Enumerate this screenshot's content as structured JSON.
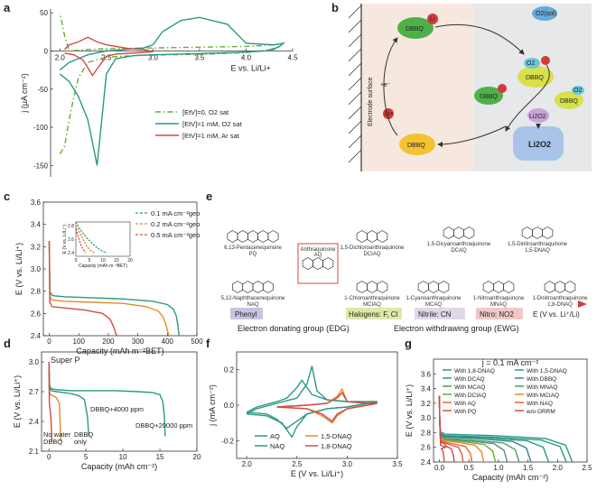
{
  "panel_labels": {
    "a": "a",
    "b": "b",
    "c": "c",
    "d": "d",
    "e": "e",
    "f": "f",
    "g": "g"
  },
  "chart_data": [
    {
      "id": "a",
      "type": "line",
      "xlabel": "E vs. Li/Li+",
      "ylabel": "j (μA cm⁻²)",
      "xlim": [
        1.9,
        4.5
      ],
      "ylim": [
        -165,
        55
      ],
      "xticks": [
        2.0,
        2.5,
        3.0,
        3.5,
        4.0,
        4.5
      ],
      "yticks": [
        50,
        0,
        -50,
        -100,
        -150
      ],
      "xtick_labels": [
        "2.0",
        "2.5",
        "3.0",
        "3.5",
        "4.0",
        "4.5"
      ],
      "ytick_labels": [
        "50",
        "0",
        "-50",
        "-100",
        "-150"
      ],
      "series": [
        {
          "name": "[EtV]=0, O2 sat",
          "color": "#6aaa3a",
          "dash": "6,3,1.5,3",
          "x": [
            2.0,
            2.05,
            2.1,
            2.15,
            2.2,
            2.3,
            2.5,
            2.8,
            3.2,
            3.6,
            4.0,
            4.3,
            4.4,
            4.3,
            4.0,
            3.5,
            3.0,
            2.5,
            2.3,
            2.2,
            2.1,
            2.05,
            2.0
          ],
          "y": [
            -135,
            -125,
            -90,
            -60,
            -35,
            -15,
            -8,
            -6,
            -5,
            -4,
            -2,
            2,
            10,
            8,
            6,
            5,
            4,
            3,
            2,
            1,
            0,
            20,
            50
          ]
        },
        {
          "name": "[EtV]=1 mM, O2 sat",
          "color": "#2a9a82",
          "dash": "",
          "x": [
            2.0,
            2.1,
            2.2,
            2.3,
            2.35,
            2.4,
            2.45,
            2.5,
            2.6,
            2.8,
            3.0,
            3.3,
            3.6,
            3.9,
            4.2,
            4.35,
            4.4,
            4.3,
            4.0,
            3.8,
            3.5,
            3.3,
            3.1,
            3.0,
            2.9,
            2.7,
            2.5,
            2.3,
            2.1,
            2.0
          ],
          "y": [
            -30,
            -40,
            -60,
            -90,
            -120,
            -150,
            -90,
            -30,
            -10,
            -6,
            -5,
            -4,
            -3,
            -2,
            0,
            5,
            10,
            8,
            10,
            35,
            44,
            40,
            25,
            8,
            4,
            2,
            0,
            -5,
            -15,
            -25
          ]
        },
        {
          "name": "[EtV]=1 mM, Ar sat",
          "color": "#d24a4a",
          "dash": "",
          "x": [
            2.05,
            2.15,
            2.25,
            2.35,
            2.42,
            2.5,
            2.6,
            2.75,
            2.9,
            3.0,
            2.9,
            2.75,
            2.6,
            2.5,
            2.45,
            2.4,
            2.3,
            2.2,
            2.1,
            2.05
          ],
          "y": [
            -3,
            -5,
            -12,
            -32,
            -20,
            -7,
            -4,
            -3,
            -2,
            -1,
            2,
            3,
            6,
            8,
            10,
            12,
            18,
            12,
            8,
            2
          ]
        }
      ],
      "legend": "bottom-right"
    },
    {
      "id": "c",
      "type": "line",
      "xlabel": "Capacity (mAh m⁻²BET)",
      "ylabel": "E (V vs. Li/Li⁺)",
      "xlim": [
        -20,
        500
      ],
      "ylim": [
        2.4,
        3.6
      ],
      "xticks": [
        0,
        100,
        200,
        300,
        400,
        500
      ],
      "yticks": [
        2.4,
        2.6,
        2.8,
        3.0,
        3.2,
        3.4,
        3.6
      ],
      "xtick_labels": [
        "0",
        "100",
        "200",
        "300",
        "400",
        "500"
      ],
      "ytick_labels": [
        "2.4",
        "2.6",
        "2.8",
        "3.0",
        "3.2",
        "3.4",
        "3.6"
      ],
      "series": [
        {
          "name": "0.1 mA cm⁻²geo",
          "color": "#2a9a82",
          "x": [
            0,
            2,
            10,
            50,
            150,
            250,
            350,
            400,
            420,
            430,
            435,
            440
          ],
          "y": [
            3.25,
            2.8,
            2.76,
            2.75,
            2.74,
            2.73,
            2.71,
            2.68,
            2.64,
            2.58,
            2.5,
            2.4
          ]
        },
        {
          "name": "0.2 mA cm⁻²geo",
          "color": "#e58a2a",
          "x": [
            0,
            2,
            10,
            50,
            150,
            250,
            330,
            370,
            385,
            395,
            400,
            405
          ],
          "y": [
            3.25,
            2.75,
            2.72,
            2.71,
            2.7,
            2.69,
            2.66,
            2.62,
            2.57,
            2.5,
            2.45,
            2.4
          ]
        },
        {
          "name": "0.5 mA cm⁻²geo",
          "color": "#d24a4a",
          "x": [
            0,
            2,
            10,
            50,
            120,
            180,
            205,
            215,
            222,
            228
          ],
          "y": [
            3.25,
            2.7,
            2.66,
            2.65,
            2.63,
            2.6,
            2.55,
            2.5,
            2.45,
            2.4
          ]
        }
      ],
      "inset": {
        "xlabel": "Capacity (mAh m⁻²BET)",
        "ylabel": "E (V vs. Li/Li⁺)",
        "xticks": [
          0,
          5,
          10,
          15,
          20
        ],
        "xtick_labels": [
          "0",
          "5",
          "10",
          "15",
          "20"
        ],
        "yticks": [
          2.4,
          2.6,
          2.8
        ],
        "ytick_labels": [
          "2.4",
          "2.6",
          "2.8"
        ],
        "xlim": [
          0,
          20
        ],
        "ylim": [
          2.35,
          2.85
        ],
        "series": [
          {
            "color": "#2a9a82",
            "x": [
              0,
              1,
              2,
              4,
              6,
              8,
              10,
              11.5
            ],
            "y": [
              2.85,
              2.78,
              2.72,
              2.62,
              2.54,
              2.47,
              2.42,
              2.4
            ]
          },
          {
            "color": "#e58a2a",
            "x": [
              0,
              1,
              2,
              3,
              4,
              5,
              6,
              7
            ],
            "y": [
              2.8,
              2.72,
              2.65,
              2.57,
              2.5,
              2.45,
              2.42,
              2.4
            ]
          },
          {
            "color": "#d24a4a",
            "x": [
              0,
              0.5,
              1,
              1.5,
              2,
              2.5,
              3,
              3.5
            ],
            "y": [
              2.75,
              2.68,
              2.62,
              2.56,
              2.5,
              2.46,
              2.43,
              2.4
            ]
          }
        ]
      },
      "legend": "top-right"
    },
    {
      "id": "d",
      "type": "line",
      "xlabel": "Capacity (mAh cm⁻²)",
      "ylabel": "E (V vs. Li/Li⁺)",
      "xlim": [
        -1,
        20
      ],
      "ylim": [
        2.1,
        3.1
      ],
      "xticks": [
        0,
        5,
        10,
        15,
        20
      ],
      "yticks": [
        2.1,
        2.4,
        2.7,
        3.0
      ],
      "xtick_labels": [
        "0",
        "5",
        "10",
        "15",
        "20"
      ],
      "ytick_labels": [
        "2.1",
        "2.4",
        "2.7",
        "3.0"
      ],
      "title_text": "Super P",
      "series": [
        {
          "name": "DBBQ+20000 ppm",
          "color": "#2a9a82",
          "x": [
            0,
            0.1,
            0.3,
            1,
            3,
            6,
            9,
            12,
            14,
            15,
            15.4,
            15.6,
            15.7
          ],
          "y": [
            3.0,
            2.76,
            2.73,
            2.72,
            2.71,
            2.71,
            2.71,
            2.7,
            2.69,
            2.67,
            2.6,
            2.45,
            2.25
          ]
        },
        {
          "name": "DBBQ+4000 ppm",
          "color": "#2a9a82",
          "x": [
            0,
            0.1,
            0.3,
            1,
            2,
            3,
            4,
            4.8,
            5.2,
            5.4
          ],
          "y": [
            3.0,
            2.74,
            2.71,
            2.7,
            2.69,
            2.68,
            2.66,
            2.62,
            2.45,
            2.25
          ]
        },
        {
          "name": "DBBQ only",
          "color": "#e58a2a",
          "x": [
            0,
            0.05,
            0.2,
            0.5,
            1.0,
            1.4,
            1.6
          ],
          "y": [
            3.0,
            2.7,
            2.67,
            2.66,
            2.64,
            2.58,
            2.2
          ]
        },
        {
          "name": "No water DBBQ",
          "color": "#d24a4a",
          "x": [
            0,
            0.05,
            0.1,
            0.2,
            0.3,
            0.4
          ],
          "y": [
            3.0,
            2.6,
            2.55,
            2.5,
            2.4,
            2.2
          ]
        }
      ],
      "annotations": [
        "DBBQ+4000 ppm",
        "DBBQ+20000 ppm",
        "No water",
        "DBBQ",
        "DBBQ",
        "only"
      ]
    },
    {
      "id": "f",
      "type": "line",
      "xlabel": "E (V vs. Li/Li⁺)",
      "ylabel": "j (mA cm⁻²)",
      "xlim": [
        1.9,
        3.5
      ],
      "ylim": [
        -0.3,
        0.3
      ],
      "xticks": [
        2.0,
        2.5,
        3.0,
        3.5
      ],
      "yticks": [
        -0.2,
        0.0,
        0.2
      ],
      "xtick_labels": [
        "2.0",
        "2.5",
        "3.0",
        "3.5"
      ],
      "ytick_labels": [
        "-0.2",
        "0.0",
        "0.2"
      ],
      "series": [
        {
          "name": "AQ",
          "color": "#2a9a82",
          "x": [
            2.0,
            2.2,
            2.35,
            2.45,
            2.5,
            2.6,
            2.8,
            3.0,
            3.3,
            3.0,
            2.8,
            2.7,
            2.65,
            2.6,
            2.5,
            2.3,
            2.1,
            2.0
          ],
          "y": [
            -0.05,
            -0.06,
            -0.1,
            -0.18,
            -0.12,
            -0.05,
            -0.02,
            -0.01,
            0.02,
            0.02,
            0.03,
            0.08,
            0.22,
            0.12,
            0.04,
            0.01,
            -0.02,
            -0.05
          ]
        },
        {
          "name": "NAQ",
          "color": "#2a9a82",
          "x": [
            2.0,
            2.2,
            2.3,
            2.4,
            2.5,
            2.6,
            2.8,
            3.0,
            3.3,
            3.0,
            2.8,
            2.65,
            2.55,
            2.5,
            2.4,
            2.3,
            2.1,
            2.0
          ],
          "y": [
            -0.04,
            -0.05,
            -0.08,
            -0.13,
            -0.09,
            -0.05,
            -0.02,
            -0.01,
            0.02,
            0.02,
            0.03,
            0.06,
            0.14,
            0.1,
            0.04,
            0.02,
            -0.01,
            -0.04
          ]
        },
        {
          "name": "1,5-DNAQ",
          "color": "#e58a2a",
          "x": [
            2.3,
            2.6,
            2.75,
            2.85,
            2.9,
            3.0,
            3.2,
            3.3,
            3.2,
            3.0,
            2.95,
            2.9,
            2.8,
            2.6,
            2.3
          ],
          "y": [
            -0.01,
            -0.02,
            -0.06,
            -0.1,
            -0.06,
            -0.02,
            0.0,
            0.01,
            0.01,
            0.02,
            0.09,
            0.05,
            0.01,
            0.0,
            -0.01
          ]
        },
        {
          "name": "1,8-DNAQ",
          "color": "#d24a4a",
          "x": [
            2.3,
            2.6,
            2.75,
            2.85,
            2.9,
            3.0,
            3.2,
            3.3,
            3.2,
            3.0,
            2.95,
            2.9,
            2.8,
            2.6,
            2.3
          ],
          "y": [
            -0.01,
            -0.02,
            -0.05,
            -0.09,
            -0.05,
            -0.02,
            0.0,
            0.01,
            0.01,
            0.02,
            0.07,
            0.04,
            0.01,
            0.0,
            -0.01
          ]
        }
      ]
    },
    {
      "id": "g",
      "type": "line",
      "xlabel": "Capacity (mAh cm⁻²)",
      "ylabel": "E (V vs. Li/Li⁺)",
      "xlim": [
        -0.1,
        2.5
      ],
      "ylim": [
        2.4,
        3.8
      ],
      "xticks": [
        0.0,
        0.5,
        1.0,
        1.5,
        2.0,
        2.5
      ],
      "yticks": [
        2.4,
        2.6,
        2.8,
        3.0,
        3.2,
        3.4,
        3.6
      ],
      "xtick_labels": [
        "0.0",
        "0.5",
        "1.0",
        "1.5",
        "2.0",
        "2.5"
      ],
      "ytick_labels": [
        "2.4",
        "2.6",
        "2.8",
        "3.0",
        "3.2",
        "3.4",
        "3.6"
      ],
      "title_text": "j = 0.1 mA cm⁻²",
      "series": [
        {
          "name": "With 1,8-DNAQ",
          "color": "#2a9a82",
          "end": 2.25,
          "v": 2.78
        },
        {
          "name": "With 1,5-DNAQ",
          "color": "#2a9a82",
          "end": 2.15,
          "v": 2.76
        },
        {
          "name": "With DCAQ",
          "color": "#2a9a82",
          "end": 1.85,
          "v": 2.75
        },
        {
          "name": "With DBBQ",
          "color": "#3b7f9a",
          "end": 1.55,
          "v": 2.74
        },
        {
          "name": "With MCAQ",
          "color": "#4d9a6a",
          "end": 1.35,
          "v": 2.72
        },
        {
          "name": "With MNAQ",
          "color": "#4d9a6a",
          "end": 1.15,
          "v": 2.71
        },
        {
          "name": "With DCIAQ",
          "color": "#6aaa3a",
          "end": 0.95,
          "v": 2.7
        },
        {
          "name": "With MCIAQ",
          "color": "#e58a2a",
          "end": 0.75,
          "v": 2.69
        },
        {
          "name": "With AQ",
          "color": "#e06a3a",
          "end": 0.55,
          "v": 2.67
        },
        {
          "name": "With NAQ",
          "color": "#e05a3a",
          "end": 0.4,
          "v": 2.66
        },
        {
          "name": "With PQ",
          "color": "#d24a4a",
          "end": 0.25,
          "v": 2.64
        },
        {
          "name": "w/o ORRM",
          "color": "#d24a4a",
          "end": 0.08,
          "v": 2.6
        }
      ]
    }
  ],
  "panel_b": {
    "electrode_surface": "Electrode surface",
    "dbbq": "DBBQ",
    "li": "Li",
    "li_plus": "Li+",
    "o2sol": "O2(sol)",
    "o2": "O2",
    "li2o2_sol": "Li2O2",
    "li2o2": "Li2O2",
    "e_minus": "+e⁻"
  },
  "panel_e": {
    "molecules": [
      {
        "abbr": "PQ",
        "name": "6,13-Pentacenequinone"
      },
      {
        "abbr": "DCIAQ",
        "name": "1,5-Dichloroanthraquinone"
      },
      {
        "abbr": "DCAQ",
        "name": "1,5-Dicyanoanthraquinone"
      },
      {
        "abbr": "1,5-DNAQ",
        "name": "1,5-Dinitroanthraquinone"
      },
      {
        "abbr": "AQ",
        "name": "Anthraquinone"
      },
      {
        "abbr": "NAQ",
        "name": "5,12-Naphthacenequinone"
      },
      {
        "abbr": "MCIAQ",
        "name": "1-Chloroanthraquinone"
      },
      {
        "abbr": "MCAQ",
        "name": "1-Cyanoanthraquinone"
      },
      {
        "abbr": "MNAQ",
        "name": "1-Nitroanthraquinone"
      },
      {
        "abbr": "1,8-DNAQ",
        "name": "1-Dinitroanthraquinone"
      }
    ],
    "groups": [
      "Phenyl",
      "Halogens: F, Cl",
      "Nitrile: CN",
      "Nitro: NO2"
    ],
    "axis_label": "E (V vs. Li⁺/Li)",
    "edg": "Electron donating group (EDG)",
    "ewg": "Electron withdrawing group (EWG)"
  }
}
